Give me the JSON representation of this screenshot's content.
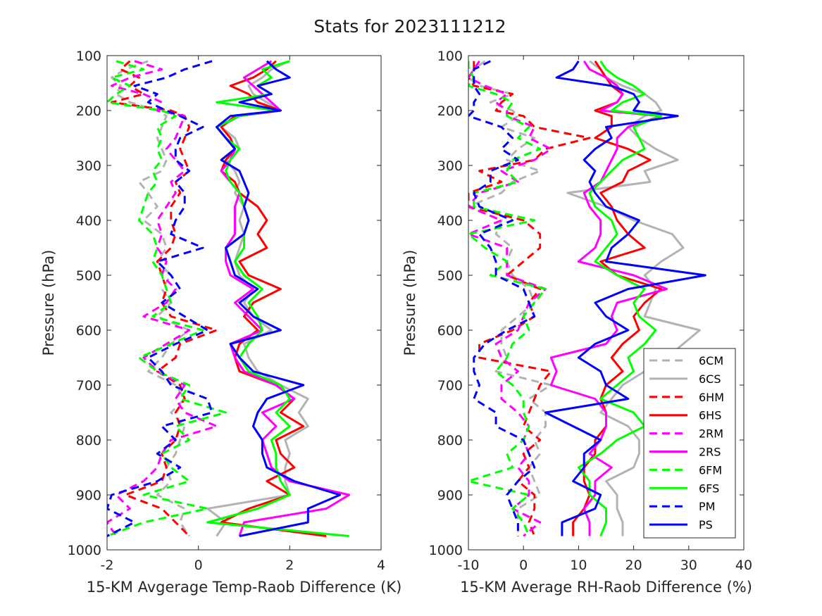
{
  "title": "Stats for 2023111212",
  "chart_data": [
    {
      "type": "line",
      "xlabel": "15-KM Avgerage Temp-Raob Difference (K)",
      "ylabel": "Pressure (hPa)",
      "xlim": [
        -2,
        4
      ],
      "ylim": [
        100,
        1000
      ],
      "y_reversed": true,
      "xticks": [
        -2,
        0,
        2,
        4
      ],
      "yticks": [
        100,
        200,
        300,
        400,
        500,
        600,
        700,
        800,
        900,
        1000
      ],
      "grid": false,
      "levels": [
        110,
        125,
        140,
        155,
        170,
        185,
        200,
        210,
        230,
        250,
        270,
        290,
        310,
        330,
        350,
        375,
        400,
        425,
        450,
        475,
        500,
        525,
        550,
        575,
        600,
        625,
        650,
        675,
        700,
        725,
        750,
        775,
        800,
        825,
        850,
        875,
        900,
        925,
        950,
        975
      ],
      "series": [
        {
          "name": "6CM",
          "values": [
            -1.1,
            -1.6,
            -1.9,
            -1.7,
            -1.8,
            -1.5,
            -0.9,
            -0.7,
            -0.8,
            -0.9,
            -0.8,
            -0.7,
            -0.8,
            -1.3,
            -1.1,
            -0.9,
            -1.2,
            -0.8,
            -0.7,
            -0.9,
            -0.6,
            -0.8,
            -0.6,
            -0.9,
            -0.2,
            -0.6,
            -0.8,
            -1.1,
            -0.5,
            -0.3,
            -0.6,
            -0.3,
            -0.4,
            -0.5,
            -0.7,
            -0.6,
            -0.9,
            -0.3,
            -0.4,
            -0.2
          ]
        },
        {
          "name": "6CS",
          "values": [
            2.0,
            1.6,
            1.4,
            1.1,
            1.2,
            1.5,
            1.8,
            0.9,
            0.5,
            0.8,
            0.9,
            0.6,
            0.8,
            0.9,
            0.8,
            1.0,
            0.9,
            1.0,
            0.9,
            0.8,
            0.9,
            1.2,
            1.0,
            1.2,
            1.6,
            1.0,
            1.1,
            1.3,
            1.8,
            2.4,
            2.2,
            2.4,
            1.9,
            2.0,
            1.9,
            1.9,
            2.0,
            0.2,
            0.6,
            0.4
          ]
        },
        {
          "name": "6HM",
          "values": [
            -1.5,
            -1.7,
            -1.3,
            -1.5,
            -1.2,
            -1.9,
            -0.6,
            -0.3,
            -0.2,
            -0.3,
            -0.4,
            -0.3,
            -0.2,
            -0.5,
            -0.4,
            -0.6,
            -0.6,
            -0.5,
            -0.6,
            -0.9,
            -0.8,
            -0.7,
            -0.8,
            -0.6,
            0.4,
            -0.4,
            -0.5,
            -0.9,
            -0.4,
            -0.3,
            -0.5,
            -0.4,
            -0.5,
            -0.8,
            -0.7,
            -0.8,
            -1.6,
            -0.8,
            -0.5,
            -0.2
          ]
        },
        {
          "name": "6HS",
          "values": [
            1.7,
            1.5,
            1.2,
            0.7,
            1.1,
            1.3,
            1.8,
            0.8,
            0.5,
            0.7,
            0.8,
            0.6,
            0.5,
            0.8,
            0.9,
            1.3,
            1.5,
            1.3,
            1.5,
            0.9,
            1.1,
            1.8,
            1.2,
            1.0,
            1.3,
            0.9,
            0.8,
            0.9,
            1.7,
            2.1,
            1.8,
            2.3,
            1.7,
            1.8,
            2.1,
            1.5,
            2.0,
            1.1,
            0.5,
            2.8
          ]
        },
        {
          "name": "2RM",
          "values": [
            -1.4,
            -0.8,
            -1.5,
            -1.9,
            -1.2,
            -0.8,
            -0.9,
            -0.3,
            -0.4,
            -0.5,
            -0.7,
            -0.5,
            -0.3,
            -0.6,
            -0.5,
            -0.7,
            -0.9,
            -0.8,
            -0.9,
            -0.7,
            -0.8,
            -0.5,
            -0.7,
            -1.2,
            -0.2,
            -0.7,
            -1.2,
            -0.9,
            -0.3,
            -0.5,
            -0.3,
            0.4,
            -0.6,
            -0.8,
            -0.9,
            -1.2,
            -1.8,
            -1.5,
            -2.0,
            -1.8
          ]
        },
        {
          "name": "2RS",
          "values": [
            1.6,
            1.3,
            1.0,
            1.2,
            1.4,
            1.6,
            1.8,
            0.9,
            0.4,
            0.6,
            0.8,
            0.7,
            0.5,
            0.7,
            0.9,
            0.8,
            0.8,
            0.8,
            0.6,
            0.6,
            0.7,
            1.2,
            0.8,
            1.1,
            1.4,
            0.7,
            0.8,
            1.0,
            1.7,
            2.1,
            1.4,
            1.7,
            1.4,
            1.5,
            1.6,
            2.0,
            3.3,
            2.8,
            1.0,
            0.9
          ]
        },
        {
          "name": "6FM",
          "values": [
            -1.8,
            -1.2,
            -1.9,
            -1.5,
            -1.8,
            -2.0,
            -0.8,
            -0.5,
            -0.9,
            -0.8,
            -0.9,
            -0.8,
            -1.0,
            -0.9,
            -1.1,
            -1.2,
            -1.3,
            -1.0,
            -0.9,
            -1.0,
            -0.8,
            -0.7,
            -0.6,
            -1.0,
            0.1,
            -0.6,
            -1.3,
            -0.9,
            -0.2,
            -0.4,
            0.6,
            -0.5,
            -0.2,
            -0.8,
            -0.6,
            -0.2,
            -1.2,
            0.2,
            -1.2,
            -2.0
          ]
        },
        {
          "name": "6FS",
          "values": [
            2.0,
            1.4,
            1.6,
            1.3,
            1.6,
            0.4,
            1.7,
            0.9,
            0.4,
            0.6,
            0.9,
            0.7,
            0.6,
            0.7,
            0.9,
            1.0,
            1.1,
            1.0,
            1.0,
            0.8,
            1.0,
            1.4,
            1.1,
            1.3,
            1.4,
            1.1,
            0.9,
            1.1,
            1.8,
            2.0,
            1.7,
            2.0,
            1.6,
            1.7,
            1.7,
            1.8,
            2.0,
            1.3,
            0.2,
            3.3
          ]
        },
        {
          "name": "PM",
          "values": [
            0.3,
            -0.3,
            -0.7,
            -1.4,
            -0.9,
            -1.1,
            -0.7,
            -0.4,
            0.1,
            -0.4,
            -0.5,
            -0.5,
            -0.2,
            -0.5,
            -0.3,
            -0.3,
            -0.5,
            -0.6,
            0.1,
            -0.9,
            -0.6,
            -0.4,
            -0.8,
            -0.3,
            0.2,
            -0.5,
            -1.1,
            -0.8,
            -0.6,
            0.2,
            0.3,
            -0.8,
            -0.5,
            -0.9,
            -0.4,
            -0.9,
            -1.9,
            -2.0,
            -1.4,
            -2.0
          ]
        },
        {
          "name": "PS",
          "values": [
            1.5,
            1.7,
            2.0,
            1.3,
            1.6,
            0.9,
            1.8,
            0.7,
            0.4,
            0.6,
            0.8,
            0.5,
            0.9,
            1.0,
            1.1,
            1.0,
            1.1,
            1.0,
            0.6,
            0.7,
            0.8,
            1.3,
            0.9,
            1.2,
            1.8,
            0.7,
            0.9,
            1.2,
            2.3,
            1.5,
            1.3,
            1.2,
            1.4,
            1.4,
            1.5,
            2.1,
            3.1,
            2.4,
            2.4,
            0.9
          ]
        }
      ]
    },
    {
      "type": "line",
      "xlabel": "15-KM Average RH-Raob Difference (%)",
      "ylabel": "Pressure (hPa)",
      "xlim": [
        -10,
        40
      ],
      "ylim": [
        100,
        1000
      ],
      "y_reversed": true,
      "xticks": [
        -10,
        0,
        10,
        20,
        30,
        40
      ],
      "yticks": [
        100,
        200,
        300,
        400,
        500,
        600,
        700,
        800,
        900,
        1000
      ],
      "grid": false,
      "legend_position": "lower-right",
      "levels": [
        110,
        125,
        140,
        155,
        170,
        185,
        200,
        210,
        230,
        250,
        270,
        290,
        310,
        330,
        350,
        375,
        400,
        425,
        450,
        475,
        500,
        525,
        550,
        575,
        600,
        625,
        650,
        675,
        700,
        725,
        750,
        775,
        800,
        825,
        850,
        875,
        900,
        925,
        950,
        975
      ],
      "series": [
        {
          "name": "6CM",
          "values": [
            -7,
            -9,
            -10,
            -8,
            -2,
            -6,
            -2,
            -1,
            -4,
            2,
            -1,
            -3,
            3,
            -2,
            -4,
            -10,
            -4,
            -5,
            -2,
            -3,
            -2,
            1,
            2,
            -1,
            -4,
            -4,
            -3,
            -5,
            5,
            1,
            4,
            4,
            2,
            3,
            1,
            2,
            3,
            -1,
            -1,
            -1
          ]
        },
        {
          "name": "6CS",
          "values": [
            12,
            14,
            15,
            18,
            22,
            24,
            25,
            22,
            19,
            21,
            24,
            28,
            22,
            23,
            8,
            15,
            20,
            27,
            29,
            25,
            22,
            24,
            23,
            22,
            32,
            29,
            26,
            22,
            18,
            16,
            14,
            19,
            21,
            21,
            20,
            15,
            17,
            17,
            18,
            18
          ]
        },
        {
          "name": "6HM",
          "values": [
            -9,
            -9,
            -10,
            -9,
            -2,
            -4,
            -5,
            0,
            2,
            12,
            4,
            2,
            -8,
            -4,
            -10,
            -10,
            0,
            3,
            3,
            0,
            -3,
            3,
            1,
            2,
            -2,
            -8,
            -8,
            5,
            3,
            2,
            1,
            0,
            3,
            0,
            1,
            -1,
            2,
            2,
            1,
            2
          ]
        },
        {
          "name": "6HS",
          "values": [
            13,
            14,
            15,
            16,
            18,
            17,
            13,
            16,
            16,
            13,
            19,
            23,
            19,
            18,
            14,
            16,
            17,
            19,
            22,
            14,
            17,
            25,
            22,
            20,
            21,
            18,
            16,
            18,
            15,
            14,
            15,
            15,
            13,
            13,
            11,
            11,
            12,
            11,
            9,
            9
          ]
        },
        {
          "name": "2RM",
          "values": [
            -8,
            -9,
            -10,
            -7,
            -3,
            -5,
            -3,
            -3,
            2,
            1,
            5,
            2,
            -4,
            -1,
            -8,
            -10,
            -4,
            -10,
            -3,
            -3,
            -3,
            4,
            1,
            0,
            -1,
            -5,
            -4,
            -1,
            -4,
            -4,
            -1,
            1,
            0,
            1,
            -1,
            1,
            1,
            -2,
            3,
            0
          ]
        },
        {
          "name": "2RS",
          "values": [
            11,
            12,
            15,
            17,
            18,
            17,
            14,
            25,
            19,
            17,
            17,
            16,
            15,
            14,
            11,
            12,
            14,
            14,
            13,
            10,
            20,
            26,
            17,
            16,
            17,
            15,
            5,
            6,
            5,
            13,
            15,
            15,
            14,
            12,
            16,
            13,
            13,
            11,
            12,
            12
          ]
        },
        {
          "name": "6FM",
          "values": [
            -10,
            -10,
            -9,
            -10,
            -5,
            -2,
            -3,
            -3,
            1,
            -1,
            3,
            -2,
            -3,
            -1,
            -9,
            -9,
            2,
            -10,
            -7,
            -3,
            -6,
            4,
            2,
            0,
            1,
            -2,
            -3,
            -5,
            -2,
            0,
            0,
            1,
            0,
            -3,
            -2,
            -10,
            1,
            -2,
            0,
            1
          ]
        },
        {
          "name": "6FS",
          "values": [
            14,
            15,
            17,
            20,
            22,
            18,
            16,
            25,
            20,
            21,
            22,
            18,
            16,
            14,
            12,
            13,
            16,
            17,
            15,
            13,
            17,
            22,
            20,
            21,
            24,
            22,
            19,
            20,
            17,
            14,
            20,
            22,
            17,
            14,
            10,
            12,
            12,
            15,
            15,
            14
          ]
        },
        {
          "name": "PM",
          "values": [
            -6,
            -9,
            -9,
            -9,
            -8,
            -9,
            -9,
            -10,
            -4,
            -2,
            -4,
            -1,
            -6,
            -6,
            -9,
            -8,
            -2,
            -8,
            -6,
            -5,
            -5,
            0,
            1,
            2,
            -3,
            -7,
            -9,
            -9,
            -8,
            -9,
            -5,
            -5,
            0,
            1,
            2,
            -1,
            -3,
            -2,
            -1,
            -1
          ]
        },
        {
          "name": "PS",
          "values": [
            10,
            9,
            6,
            16,
            20,
            21,
            20,
            28,
            15,
            16,
            13,
            11,
            13,
            12,
            13,
            15,
            21,
            19,
            16,
            15,
            33,
            19,
            13,
            15,
            19,
            13,
            10,
            14,
            15,
            19,
            4,
            9,
            14,
            11,
            11,
            9,
            14,
            13,
            7,
            7
          ]
        }
      ]
    }
  ],
  "legend": [
    {
      "name": "6CM",
      "color": "#b3b3b3",
      "dash": true
    },
    {
      "name": "6CS",
      "color": "#b3b3b3",
      "dash": false
    },
    {
      "name": "6HM",
      "color": "#ff0000",
      "dash": true
    },
    {
      "name": "6HS",
      "color": "#ff0000",
      "dash": false
    },
    {
      "name": "2RM",
      "color": "#ff00ff",
      "dash": true
    },
    {
      "name": "2RS",
      "color": "#ff00ff",
      "dash": false
    },
    {
      "name": "6FM",
      "color": "#00ff00",
      "dash": true
    },
    {
      "name": "6FS",
      "color": "#00ff00",
      "dash": false
    },
    {
      "name": "PM",
      "color": "#0000ff",
      "dash": true
    },
    {
      "name": "PS",
      "color": "#0000ff",
      "dash": false
    }
  ]
}
